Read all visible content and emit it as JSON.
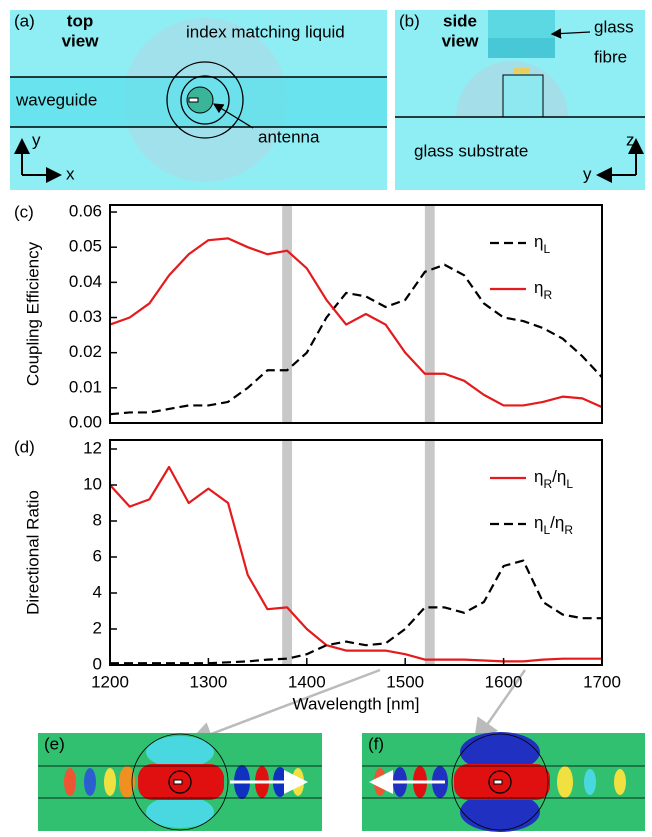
{
  "chart_data": [
    {
      "type": "line",
      "panel_label": "(c)",
      "y_label": "Coupling Efficiency",
      "x": [
        1200,
        1220,
        1240,
        1260,
        1280,
        1300,
        1320,
        1340,
        1360,
        1380,
        1400,
        1420,
        1440,
        1460,
        1480,
        1500,
        1520,
        1540,
        1560,
        1580,
        1600,
        1620,
        1640,
        1660,
        1680,
        1700
      ],
      "series": [
        {
          "name": "ηL",
          "color": "#000000",
          "dash": true,
          "values": [
            0.0025,
            0.003,
            0.003,
            0.004,
            0.005,
            0.005,
            0.006,
            0.01,
            0.015,
            0.015,
            0.02,
            0.03,
            0.037,
            0.036,
            0.033,
            0.035,
            0.043,
            0.045,
            0.042,
            0.034,
            0.03,
            0.029,
            0.027,
            0.024,
            0.019,
            0.013
          ]
        },
        {
          "name": "ηR",
          "color": "#e41a1c",
          "dash": false,
          "values": [
            0.028,
            0.03,
            0.034,
            0.042,
            0.048,
            0.052,
            0.0525,
            0.05,
            0.048,
            0.049,
            0.044,
            0.035,
            0.028,
            0.031,
            0.028,
            0.02,
            0.014,
            0.014,
            0.012,
            0.008,
            0.005,
            0.005,
            0.006,
            0.0075,
            0.007,
            0.0045
          ]
        }
      ],
      "xlim": [
        1200,
        1700
      ],
      "ylim": [
        0,
        0.062
      ],
      "yticks": [
        {
          "value": 0,
          "label": "0.00"
        },
        0.01,
        0.02,
        0.03,
        0.04,
        0.05,
        0.06
      ],
      "bands": [
        [
          1375,
          1385
        ],
        [
          1520,
          1530
        ]
      ],
      "legend": "upper right"
    },
    {
      "type": "line",
      "panel_label": "(d)",
      "y_label": "Directional Ratio",
      "x_label": "Wavelength [nm]",
      "x": [
        1200,
        1220,
        1240,
        1260,
        1280,
        1300,
        1320,
        1340,
        1360,
        1380,
        1400,
        1420,
        1440,
        1460,
        1480,
        1500,
        1520,
        1540,
        1560,
        1580,
        1600,
        1620,
        1640,
        1660,
        1680,
        1700
      ],
      "series": [
        {
          "name": "ηR/ηL",
          "color": "#e41a1c",
          "dash": false,
          "values": [
            10.0,
            8.8,
            9.2,
            11.0,
            9.0,
            9.8,
            9.0,
            5.0,
            3.1,
            3.2,
            2.0,
            1.1,
            0.8,
            0.8,
            0.8,
            0.6,
            0.3,
            0.3,
            0.3,
            0.25,
            0.2,
            0.2,
            0.3,
            0.35,
            0.35,
            0.35
          ]
        },
        {
          "name": "ηL/ηR",
          "color": "#000000",
          "dash": true,
          "values": [
            0.1,
            0.1,
            0.1,
            0.1,
            0.1,
            0.1,
            0.15,
            0.2,
            0.3,
            0.35,
            0.6,
            1.1,
            1.3,
            1.1,
            1.2,
            2.0,
            3.2,
            3.2,
            2.9,
            3.5,
            5.5,
            5.8,
            3.5,
            2.8,
            2.6,
            2.6
          ]
        }
      ],
      "xlim": [
        1200,
        1700
      ],
      "ylim": [
        0,
        12.5
      ],
      "xticks": [
        1200,
        1300,
        1400,
        1500,
        1600,
        1700
      ],
      "yticks": [
        0,
        2,
        4,
        6,
        8,
        10,
        12
      ],
      "bands": [
        [
          1375,
          1385
        ],
        [
          1520,
          1530
        ]
      ],
      "legend": "upper right"
    }
  ],
  "panels": {
    "a": {
      "label": "(a)",
      "view": [
        "top",
        "view"
      ],
      "liquid": "index matching liquid",
      "waveguide": "waveguide",
      "antenna": "antenna",
      "axis_y": "y",
      "axis_x": "x"
    },
    "b": {
      "label": "(b)",
      "view": [
        "side",
        "view"
      ],
      "fibre": [
        "glass",
        "fibre"
      ],
      "substrate": "glass substrate",
      "axis_z": "z",
      "axis_y": "y"
    },
    "e": {
      "label": "(e)"
    },
    "f": {
      "label": "(f)"
    }
  }
}
